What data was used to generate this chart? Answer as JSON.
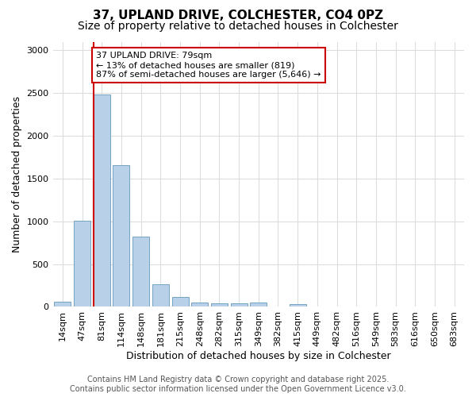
{
  "title_line1": "37, UPLAND DRIVE, COLCHESTER, CO4 0PZ",
  "title_line2": "Size of property relative to detached houses in Colchester",
  "xlabel": "Distribution of detached houses by size in Colchester",
  "ylabel": "Number of detached properties",
  "categories": [
    "14sqm",
    "47sqm",
    "81sqm",
    "114sqm",
    "148sqm",
    "181sqm",
    "215sqm",
    "248sqm",
    "282sqm",
    "315sqm",
    "349sqm",
    "382sqm",
    "415sqm",
    "449sqm",
    "482sqm",
    "516sqm",
    "549sqm",
    "583sqm",
    "616sqm",
    "650sqm",
    "683sqm"
  ],
  "values": [
    60,
    1010,
    2480,
    1660,
    820,
    265,
    120,
    55,
    40,
    40,
    55,
    5,
    30,
    0,
    0,
    0,
    0,
    0,
    0,
    0,
    0
  ],
  "bar_color": "#b8d0e8",
  "bar_edge_color": "#6699bb",
  "vline_color": "#cc0000",
  "annotation_text": "37 UPLAND DRIVE: 79sqm\n← 13% of detached houses are smaller (819)\n87% of semi-detached houses are larger (5,646) →",
  "annotation_box_facecolor": "#ffffff",
  "annotation_box_edgecolor": "#cc0000",
  "ylim": [
    0,
    3100
  ],
  "yticks": [
    0,
    500,
    1000,
    1500,
    2000,
    2500,
    3000
  ],
  "footer_line1": "Contains HM Land Registry data © Crown copyright and database right 2025.",
  "footer_line2": "Contains public sector information licensed under the Open Government Licence v3.0.",
  "bg_color": "#ffffff",
  "plot_bg_color": "#ffffff",
  "grid_color": "#dddddd",
  "title_fontsize": 11,
  "subtitle_fontsize": 10,
  "label_fontsize": 9,
  "tick_fontsize": 8,
  "annot_fontsize": 8,
  "footer_fontsize": 7
}
